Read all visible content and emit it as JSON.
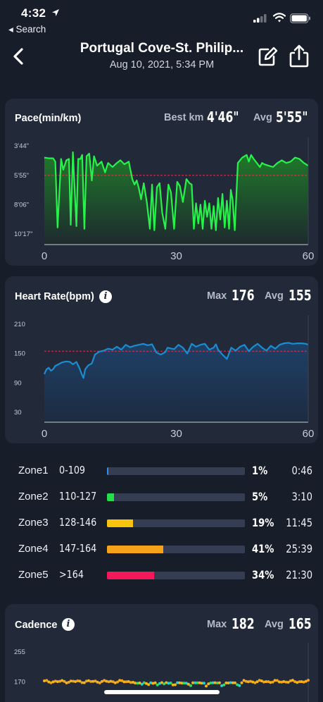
{
  "status_bar": {
    "time": "4:32",
    "back_app": "◂ Search"
  },
  "nav": {
    "title": "Portugal Cove-St. Philip...",
    "subtitle": "Aug 10, 2021, 5:34 PM"
  },
  "pace": {
    "title": "Pace(min/km)",
    "best_label": "Best km",
    "best_value": "4'46\"",
    "avg_label": "Avg",
    "avg_value": "5'55\""
  },
  "heart_rate": {
    "title": "Heart Rate(bpm)",
    "max_label": "Max",
    "max_value": "176",
    "avg_label": "Avg",
    "avg_value": "155"
  },
  "zones": [
    {
      "name": "Zone1",
      "range": "0-109",
      "percent": "1%",
      "fraction": 0.01,
      "time": "0:46",
      "color": "#2f8ff0"
    },
    {
      "name": "Zone2",
      "range": "110-127",
      "percent": "5%",
      "fraction": 0.05,
      "time": "3:10",
      "color": "#23e04a"
    },
    {
      "name": "Zone3",
      "range": "128-146",
      "percent": "19%",
      "fraction": 0.19,
      "time": "11:45",
      "color": "#f7c30c"
    },
    {
      "name": "Zone4",
      "range": "147-164",
      "percent": "41%",
      "fraction": 0.41,
      "time": "25:39",
      "color": "#f7a21b"
    },
    {
      "name": "Zone5",
      "range": ">164",
      "percent": "34%",
      "fraction": 0.34,
      "time": "21:30",
      "color": "#f2185a"
    }
  ],
  "cadence": {
    "title": "Cadence",
    "max_label": "Max",
    "max_value": "182",
    "avg_label": "Avg",
    "avg_value": "165"
  },
  "colors": {
    "background": "#171d29",
    "card": "#222a3a",
    "pace_line": "#27f24a",
    "avg_line": "#e0304a",
    "hr_fill": "#1e4067"
  },
  "chart_data": [
    {
      "type": "area",
      "ylabel": "Pace(min/km)",
      "y_ticks": [
        "3'44\"",
        "5'55\"",
        "8'06\"",
        "10'17\""
      ],
      "x_ticks": [
        "0",
        "30",
        "60"
      ],
      "y_range_min_per_km": [
        3.73,
        10.28
      ],
      "y_inverted": true,
      "x_range": [
        0,
        60
      ],
      "avg_line": 5.92,
      "x": [
        0,
        1,
        2,
        2.5,
        3,
        3.8,
        4.3,
        5,
        5.6,
        6,
        6.5,
        7.3,
        7.7,
        8.2,
        8.6,
        9.1,
        9.6,
        10.2,
        10.8,
        11.3,
        12,
        13,
        13.8,
        14.5,
        15.5,
        16.5,
        17.3,
        18.2,
        19.2,
        20,
        20.5,
        21,
        21.5,
        22,
        22.6,
        23.3,
        24,
        24.5,
        25,
        25.6,
        26.2,
        26.8,
        27.5,
        28.2,
        28.8,
        29.5,
        30.2,
        30.8,
        31.5,
        32.3,
        33,
        33.5,
        34,
        34.5,
        35,
        35.5,
        36,
        36.5,
        37,
        37.5,
        38,
        38.5,
        39,
        39.5,
        40,
        40.5,
        41,
        41.5,
        42,
        42.4,
        42.8,
        43.3,
        44,
        45,
        46,
        46.5,
        47,
        47.6,
        48.3,
        49,
        49.5,
        50,
        51,
        52,
        53,
        54,
        55,
        56,
        57,
        58,
        59,
        60
      ],
      "y": [
        4.6,
        4.65,
        4.65,
        4.9,
        9.8,
        4.7,
        5.5,
        4.8,
        4.7,
        9.6,
        4.2,
        9.7,
        4.7,
        4.7,
        4.4,
        9.9,
        4.5,
        4.3,
        6.3,
        4.5,
        5.2,
        4.9,
        5.7,
        5.0,
        5.3,
        5.0,
        4.8,
        5.1,
        4.9,
        6.2,
        6.6,
        6.3,
        6.9,
        7.7,
        6.5,
        7.9,
        9.9,
        6.6,
        10.0,
        6.8,
        6.5,
        8.7,
        9.9,
        6.6,
        7.2,
        9.9,
        6.4,
        6.7,
        7.9,
        6.2,
        6.5,
        6.6,
        9.9,
        8.0,
        9.5,
        8.1,
        9.9,
        7.8,
        9.0,
        8.0,
        9.9,
        8.2,
        10.0,
        7.6,
        9.2,
        7.3,
        9.8,
        7.8,
        9.9,
        7.0,
        7.7,
        10.0,
        5.0,
        4.6,
        4.4,
        4.9,
        4.4,
        4.7,
        5.0,
        5.3,
        5.0,
        5.1,
        5.2,
        5.3,
        5.0,
        4.8,
        5.0,
        4.9,
        4.6,
        4.7,
        5.0,
        5.2
      ]
    },
    {
      "type": "area",
      "ylabel": "Heart Rate(bpm)",
      "y_ticks": [
        "210",
        "150",
        "90",
        "30"
      ],
      "x_ticks": [
        "0",
        "30",
        "60"
      ],
      "y_range": [
        30,
        210
      ],
      "x_range": [
        0,
        60
      ],
      "avg_line": 155,
      "x": [
        0,
        0.5,
        1,
        1.5,
        2,
        2.5,
        3,
        4,
        5,
        5.8,
        6.5,
        7.3,
        8,
        8.5,
        8.9,
        9.3,
        10,
        10.8,
        11.5,
        12.5,
        13.5,
        14.5,
        15.5,
        16.5,
        17.5,
        18.5,
        19.5,
        20.5,
        21.5,
        22.5,
        23.5,
        24.5,
        25.5,
        26.5,
        27.5,
        28,
        29,
        29.5,
        30.5,
        31.5,
        32.5,
        33.5,
        34.5,
        35.5,
        36.5,
        37.5,
        38.5,
        39,
        39.5,
        40.5,
        41.5,
        42.5,
        43.5,
        44.5,
        45.5,
        46.5,
        47.5,
        48.5,
        49.5,
        50.5,
        51.5,
        52.5,
        53.5,
        54.5,
        55.5,
        56.5,
        57.5,
        58.5,
        59.5,
        60
      ],
      "y": [
        108,
        118,
        121,
        115,
        118,
        125,
        127,
        132,
        134,
        133,
        128,
        133,
        120,
        108,
        100,
        118,
        126,
        130,
        148,
        154,
        156,
        160,
        158,
        164,
        158,
        168,
        163,
        166,
        168,
        170,
        167,
        169,
        152,
        148,
        153,
        162,
        160,
        159,
        168,
        162,
        150,
        170,
        164,
        168,
        170,
        158,
        162,
        169,
        158,
        148,
        139,
        162,
        156,
        164,
        168,
        155,
        164,
        170,
        162,
        156,
        166,
        160,
        168,
        171,
        172,
        170,
        171,
        171,
        170,
        168
      ]
    },
    {
      "type": "scatter",
      "ylabel": "Cadence",
      "y_ticks": [
        "255",
        "170"
      ],
      "y_range": [
        85,
        255
      ],
      "x_range": [
        0,
        60
      ],
      "partially_visible": true
    }
  ]
}
